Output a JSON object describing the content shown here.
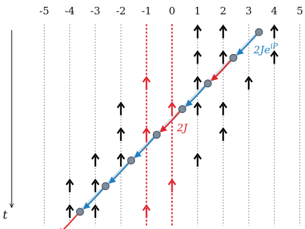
{
  "x_ticks": [
    "-5",
    "-4",
    "-3",
    "-2",
    "-1",
    "0",
    "1",
    "2",
    "3",
    "4",
    "5"
  ],
  "time_label": "t",
  "hop_label_blue": "2Je^{iP}",
  "hop_label_blue_base": "2Je",
  "hop_label_blue_exp": "iP",
  "hop_label_red": "2J",
  "colors": {
    "black_spin": "#000000",
    "red_spin": "#e0232b",
    "blue_hop": "#1f7fc0",
    "red_hop": "#e0232b",
    "particle": "#7f8c99",
    "grid": "#777777",
    "highlight_grid": "#e0232b"
  },
  "highlighted_sites": [
    -1,
    0
  ],
  "rows": [
    {
      "spins": [
        1,
        2,
        4
      ],
      "particle": 3.4
    },
    {
      "spins": [
        1,
        2,
        4
      ],
      "particle": 2.4
    },
    {
      "spins": [
        -1,
        1,
        3
      ],
      "particle": 1.4
    },
    {
      "spins": [
        -2,
        0,
        1,
        2
      ],
      "particle": 0.4
    },
    {
      "spins": [
        -2,
        -1,
        2
      ],
      "particle": -0.6
    },
    {
      "spins": [
        -3,
        -2,
        1
      ],
      "particle": -1.6
    },
    {
      "spins": [
        -4,
        -3,
        0
      ],
      "particle": -2.6
    },
    {
      "spins": [
        -4,
        -3,
        -1
      ],
      "particle": -3.6
    }
  ],
  "hops": [
    {
      "row": 0,
      "type": "blue"
    },
    {
      "row": 1,
      "type": "red"
    },
    {
      "row": 2,
      "type": "blue"
    },
    {
      "row": 3,
      "type": "red"
    },
    {
      "row": 4,
      "type": "blue"
    },
    {
      "row": 5,
      "type": "blue"
    },
    {
      "row": 6,
      "type": "blue"
    },
    {
      "row": 7,
      "type": "red"
    }
  ]
}
